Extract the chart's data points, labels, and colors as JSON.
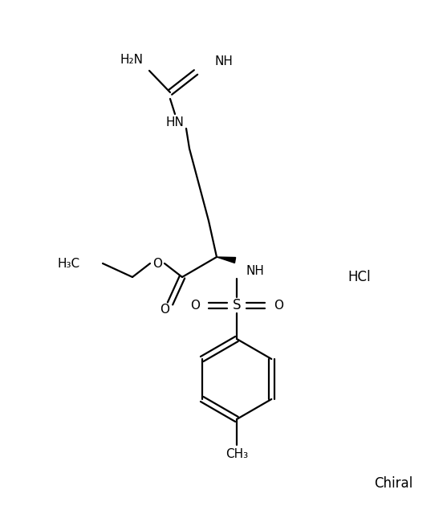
{
  "background_color": "#ffffff",
  "text_color": "#000000",
  "line_color": "#000000",
  "line_width": 1.6,
  "font_size": 11,
  "chiral_label": "Chiral",
  "hcl_label": "HCl",
  "ch3_label": "CH₃",
  "figsize": [
    5.57,
    6.4
  ],
  "dpi": 100
}
